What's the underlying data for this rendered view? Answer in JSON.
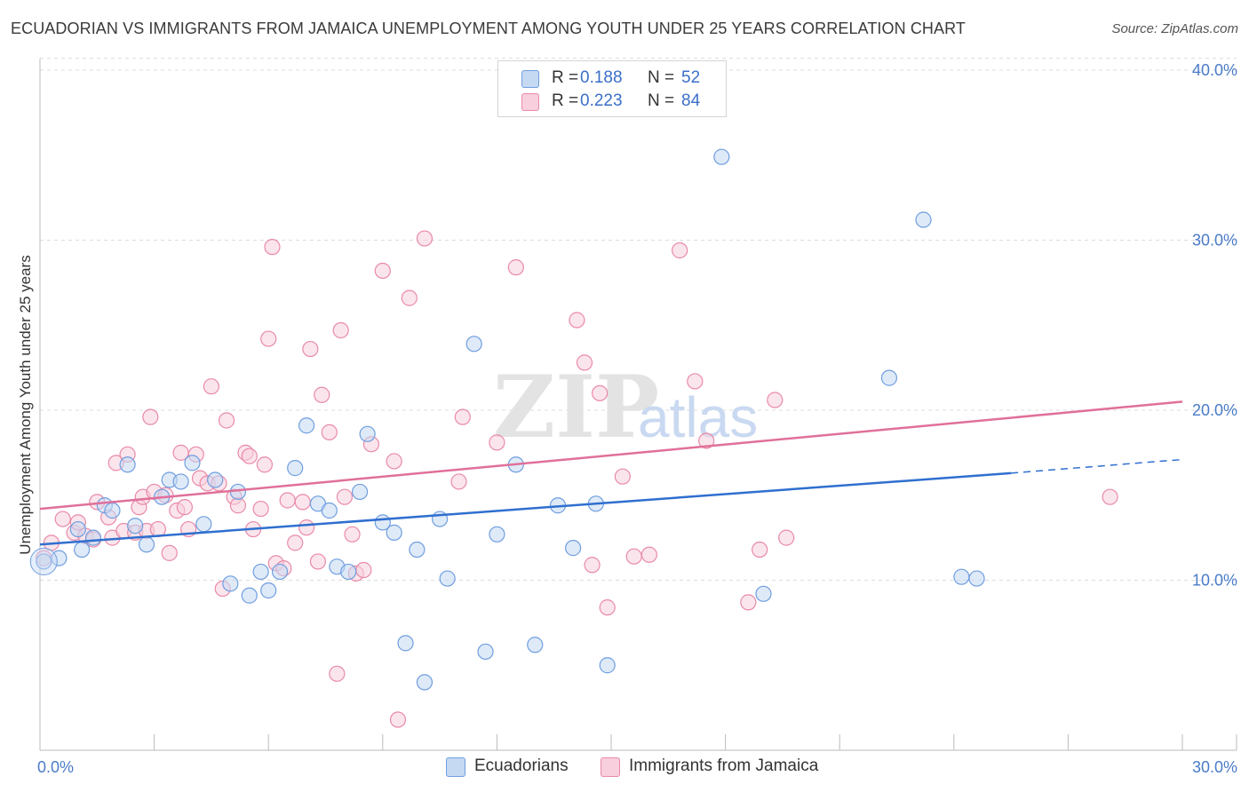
{
  "title": "ECUADORIAN VS IMMIGRANTS FROM JAMAICA UNEMPLOYMENT AMONG YOUTH UNDER 25 YEARS CORRELATION CHART",
  "source": "Source: ZipAtlas.com",
  "legend": {
    "r_label": "R =",
    "n_label": "N =",
    "entries": [
      {
        "r": "0.188",
        "n": "52"
      },
      {
        "r": "0.223",
        "n": "84"
      }
    ]
  },
  "bottom_legend": [
    "Ecuadorians",
    "Immigrants from Jamaica"
  ],
  "watermark": {
    "zip": "ZIP",
    "atlas": "atlas"
  },
  "colors": {
    "blue_fill": "#c5d9f3",
    "blue_stroke": "#6f9ee0",
    "blue_line": "#2f6fcf",
    "pink_fill": "#f8cfdc",
    "pink_stroke": "#e98aa8",
    "pink_line": "#e0709a",
    "grid": "#dcdcdc",
    "tick_text": "#4a7bc8"
  },
  "chart_data": {
    "type": "scatter",
    "title": "ECUADORIAN VS IMMIGRANTS FROM JAMAICA UNEMPLOYMENT AMONG YOUTH UNDER 25 YEARS CORRELATION CHART",
    "xlabel": "",
    "ylabel": "Unemployment Among Youth under 25 years",
    "xlim": [
      0,
      30
    ],
    "ylim": [
      0,
      40
    ],
    "x_tick_labels": [
      "0.0%",
      "30.0%"
    ],
    "y_ticks": [
      10,
      20,
      30,
      40
    ],
    "y_tick_labels": [
      "10.0%",
      "20.0%",
      "30.0%",
      "40.0%"
    ],
    "series": [
      {
        "name": "Ecuadorians",
        "color": "blue",
        "r": 0.188,
        "n": 52,
        "trend": {
          "x0": 0,
          "y0": 12.1,
          "x1": 25.5,
          "y1": 16.3,
          "dash_x1": 30,
          "dash_y1": 17.1
        },
        "points": [
          [
            0.1,
            11.1
          ],
          [
            0.5,
            11.3
          ],
          [
            1.0,
            13.0
          ],
          [
            1.1,
            11.8
          ],
          [
            1.4,
            12.5
          ],
          [
            1.7,
            14.4
          ],
          [
            1.9,
            14.1
          ],
          [
            2.3,
            16.8
          ],
          [
            2.5,
            13.2
          ],
          [
            2.8,
            12.1
          ],
          [
            3.2,
            14.9
          ],
          [
            3.4,
            15.9
          ],
          [
            3.7,
            15.8
          ],
          [
            4.0,
            16.9
          ],
          [
            4.3,
            13.3
          ],
          [
            4.6,
            15.9
          ],
          [
            5.0,
            9.8
          ],
          [
            5.2,
            15.2
          ],
          [
            5.5,
            9.1
          ],
          [
            5.8,
            10.5
          ],
          [
            6.0,
            9.4
          ],
          [
            6.3,
            10.5
          ],
          [
            6.7,
            16.6
          ],
          [
            7.0,
            19.1
          ],
          [
            7.3,
            14.5
          ],
          [
            7.6,
            14.1
          ],
          [
            7.8,
            10.8
          ],
          [
            8.1,
            10.5
          ],
          [
            8.4,
            15.2
          ],
          [
            8.6,
            18.6
          ],
          [
            9.0,
            13.4
          ],
          [
            9.3,
            12.8
          ],
          [
            9.6,
            6.3
          ],
          [
            9.9,
            11.8
          ],
          [
            10.1,
            4.0
          ],
          [
            10.5,
            13.6
          ],
          [
            10.7,
            10.1
          ],
          [
            11.4,
            23.9
          ],
          [
            11.7,
            5.8
          ],
          [
            12.0,
            12.7
          ],
          [
            12.5,
            16.8
          ],
          [
            13.0,
            6.2
          ],
          [
            13.6,
            14.4
          ],
          [
            14.0,
            11.9
          ],
          [
            14.6,
            14.5
          ],
          [
            14.9,
            5.0
          ],
          [
            17.9,
            34.9
          ],
          [
            19.0,
            9.2
          ],
          [
            22.3,
            21.9
          ],
          [
            23.2,
            31.2
          ],
          [
            24.2,
            10.2
          ],
          [
            24.6,
            10.1
          ]
        ]
      },
      {
        "name": "Immigrants from Jamaica",
        "color": "pink",
        "r": 0.223,
        "n": 84,
        "trend": {
          "x0": 0,
          "y0": 14.2,
          "x1": 30,
          "y1": 20.5
        },
        "points": [
          [
            0.1,
            11.3
          ],
          [
            0.3,
            12.2
          ],
          [
            0.6,
            13.6
          ],
          [
            0.9,
            12.8
          ],
          [
            1.0,
            13.4
          ],
          [
            1.2,
            12.6
          ],
          [
            1.4,
            12.4
          ],
          [
            1.5,
            14.6
          ],
          [
            1.8,
            13.7
          ],
          [
            1.9,
            12.5
          ],
          [
            2.0,
            16.9
          ],
          [
            2.2,
            12.9
          ],
          [
            2.3,
            17.4
          ],
          [
            2.5,
            12.8
          ],
          [
            2.6,
            14.3
          ],
          [
            2.7,
            14.9
          ],
          [
            2.8,
            12.9
          ],
          [
            2.9,
            19.6
          ],
          [
            3.0,
            15.2
          ],
          [
            3.1,
            13.0
          ],
          [
            3.3,
            15.0
          ],
          [
            3.4,
            11.6
          ],
          [
            3.6,
            14.1
          ],
          [
            3.7,
            17.5
          ],
          [
            3.8,
            14.3
          ],
          [
            3.9,
            13.0
          ],
          [
            4.1,
            17.4
          ],
          [
            4.2,
            16.0
          ],
          [
            4.4,
            15.7
          ],
          [
            4.5,
            21.4
          ],
          [
            4.7,
            15.7
          ],
          [
            4.8,
            9.5
          ],
          [
            4.9,
            19.4
          ],
          [
            5.1,
            14.9
          ],
          [
            5.2,
            14.4
          ],
          [
            5.4,
            17.5
          ],
          [
            5.5,
            17.3
          ],
          [
            5.6,
            13.0
          ],
          [
            5.8,
            14.2
          ],
          [
            5.9,
            16.8
          ],
          [
            6.0,
            24.2
          ],
          [
            6.2,
            11.0
          ],
          [
            6.4,
            10.7
          ],
          [
            6.5,
            14.7
          ],
          [
            6.7,
            12.2
          ],
          [
            6.9,
            14.6
          ],
          [
            7.0,
            13.1
          ],
          [
            7.1,
            23.6
          ],
          [
            7.3,
            11.1
          ],
          [
            7.4,
            20.9
          ],
          [
            7.6,
            18.7
          ],
          [
            7.8,
            4.5
          ],
          [
            7.9,
            24.7
          ],
          [
            8.0,
            14.9
          ],
          [
            8.2,
            12.7
          ],
          [
            8.3,
            10.4
          ],
          [
            8.5,
            10.6
          ],
          [
            8.7,
            18.0
          ],
          [
            9.0,
            28.2
          ],
          [
            9.3,
            17.0
          ],
          [
            9.7,
            26.6
          ],
          [
            10.1,
            30.1
          ],
          [
            9.4,
            1.8
          ],
          [
            11.0,
            15.8
          ],
          [
            11.1,
            19.6
          ],
          [
            12.0,
            18.1
          ],
          [
            12.5,
            28.4
          ],
          [
            14.1,
            25.3
          ],
          [
            14.3,
            22.8
          ],
          [
            14.5,
            10.9
          ],
          [
            14.7,
            21.0
          ],
          [
            14.9,
            8.4
          ],
          [
            15.3,
            16.1
          ],
          [
            15.6,
            11.4
          ],
          [
            16.8,
            29.4
          ],
          [
            17.2,
            21.7
          ],
          [
            17.5,
            18.2
          ],
          [
            18.6,
            8.7
          ],
          [
            18.9,
            11.8
          ],
          [
            19.3,
            20.6
          ],
          [
            19.6,
            12.5
          ],
          [
            28.1,
            14.9
          ],
          [
            6.1,
            29.6
          ],
          [
            16.0,
            11.5
          ]
        ]
      }
    ]
  }
}
